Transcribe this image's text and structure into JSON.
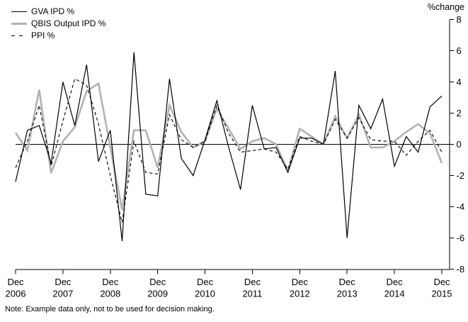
{
  "legend": [
    {
      "label": "GVA IPD %",
      "style": "solid-black"
    },
    {
      "label": "QBIS Output IPD %",
      "style": "solid-gray"
    },
    {
      "label": "PPI %",
      "style": "dashed-black"
    }
  ],
  "axis_unit_label": "%change",
  "note": "Note: Example data only, not to be used for decision making.",
  "colors": {
    "line_black": "#000000",
    "line_gray": "#b2b2b2"
  },
  "chart_data": {
    "type": "line",
    "title": "",
    "xlabel": "",
    "ylabel": "%change",
    "ylim": [
      -8,
      8
    ],
    "y_ticks": [
      8,
      6,
      4,
      2,
      0,
      -2,
      -4,
      -6,
      -8
    ],
    "grid": false,
    "legend_position": "top-left",
    "x_ticks": [
      {
        "month": "Dec",
        "year": "2006"
      },
      {
        "month": "Dec",
        "year": "2007"
      },
      {
        "month": "Dec",
        "year": "2008"
      },
      {
        "month": "Dec",
        "year": "2009"
      },
      {
        "month": "Dec",
        "year": "2010"
      },
      {
        "month": "Dec",
        "year": "2011"
      },
      {
        "month": "Dec",
        "year": "2012"
      },
      {
        "month": "Dec",
        "year": "2013"
      },
      {
        "month": "Dec",
        "year": "2014"
      },
      {
        "month": "Dec",
        "year": "2015"
      }
    ],
    "categories": [
      "Dec-2006",
      "Mar-2007",
      "Jun-2007",
      "Sep-2007",
      "Dec-2007",
      "Mar-2008",
      "Jun-2008",
      "Sep-2008",
      "Dec-2008",
      "Mar-2009",
      "Jun-2009",
      "Sep-2009",
      "Dec-2009",
      "Mar-2010",
      "Jun-2010",
      "Sep-2010",
      "Dec-2010",
      "Mar-2011",
      "Jun-2011",
      "Sep-2011",
      "Dec-2011",
      "Mar-2012",
      "Jun-2012",
      "Sep-2012",
      "Dec-2012",
      "Mar-2013",
      "Jun-2013",
      "Sep-2013",
      "Dec-2013",
      "Mar-2014",
      "Jun-2014",
      "Sep-2014",
      "Dec-2014",
      "Mar-2015",
      "Jun-2015",
      "Sep-2015",
      "Dec-2015"
    ],
    "series": [
      {
        "name": "GVA IPD %",
        "style": "solid-black",
        "values": [
          -2.4,
          0.9,
          1.2,
          -1.2,
          4.0,
          1.2,
          5.1,
          -1.1,
          0.9,
          -6.2,
          5.9,
          -3.2,
          -3.3,
          4.2,
          -0.9,
          -2.0,
          0.3,
          2.8,
          -0.2,
          -2.9,
          2.5,
          -0.3,
          -0.2,
          -1.8,
          0.4,
          0.4,
          0.0,
          4.7,
          -6.0,
          2.5,
          1.0,
          2.9,
          -1.4,
          0.5,
          -0.5,
          2.4,
          3.1
        ]
      },
      {
        "name": "QBIS Output IPD %",
        "style": "solid-gray",
        "values": [
          0.75,
          -0.4,
          3.5,
          -1.85,
          0.2,
          1.1,
          3.4,
          3.9,
          -0.2,
          -4.2,
          0.9,
          0.9,
          -1.5,
          2.5,
          0.8,
          -0.2,
          0.2,
          2.3,
          1.0,
          -0.3,
          0.2,
          0.4,
          0.0,
          -1.7,
          1.0,
          0.5,
          0.0,
          1.8,
          0.4,
          1.9,
          -0.2,
          -0.2,
          0.2,
          0.8,
          1.3,
          0.7,
          -1.2
        ]
      },
      {
        "name": "PPI %",
        "style": "dashed-black",
        "values": [
          -1.5,
          0.2,
          2.5,
          -1.4,
          1.5,
          4.2,
          3.8,
          1.3,
          -2.0,
          -5.0,
          0.2,
          -1.8,
          -1.9,
          1.9,
          0.3,
          -0.2,
          0.2,
          2.5,
          0.7,
          -0.5,
          -0.4,
          -0.3,
          -0.5,
          -1.6,
          0.5,
          0.2,
          0.0,
          1.6,
          0.4,
          1.7,
          0.3,
          0.2,
          0.2,
          -0.7,
          0.2,
          0.9,
          -0.5
        ]
      }
    ]
  }
}
